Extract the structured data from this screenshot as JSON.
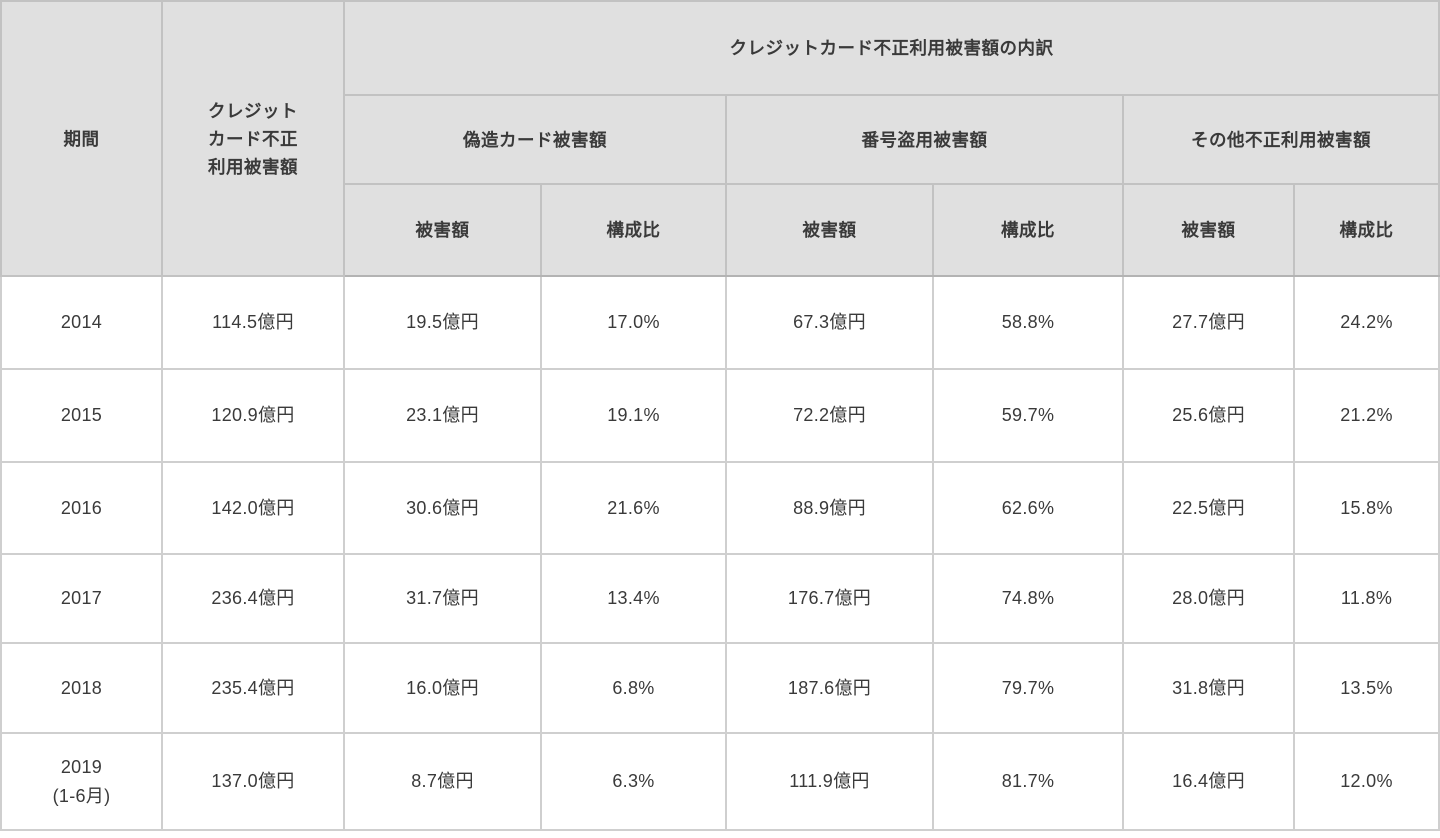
{
  "table": {
    "header": {
      "period": "期間",
      "total": "クレジット\nカード不正\n利用被害額",
      "breakdown_title": "クレジットカード不正利用被害額の内訳",
      "groups": [
        {
          "label": "偽造カード被害額"
        },
        {
          "label": "番号盗用被害額"
        },
        {
          "label": "その他不正利用被害額"
        }
      ],
      "amount_label": "被害額",
      "ratio_label": "構成比"
    },
    "rows": [
      {
        "cells": [
          "2014",
          "114.5億円",
          "19.5億円",
          "17.0%",
          "67.3億円",
          "58.8%",
          "27.7億円",
          "24.2%"
        ]
      },
      {
        "cells": [
          "2015",
          "120.9億円",
          "23.1億円",
          "19.1%",
          "72.2億円",
          "59.7%",
          "25.6億円",
          "21.2%"
        ]
      },
      {
        "cells": [
          "2016",
          "142.0億円",
          "30.6億円",
          "21.6%",
          "88.9億円",
          "62.6%",
          "22.5億円",
          "15.8%"
        ]
      },
      {
        "cells": [
          "2017",
          "236.4億円",
          "31.7億円",
          "13.4%",
          "176.7億円",
          "74.8%",
          "28.0億円",
          "11.8%"
        ]
      },
      {
        "cells": [
          "2018",
          "235.4億円",
          "16.0億円",
          "6.8%",
          "187.6億円",
          "79.7%",
          "31.8億円",
          "13.5%"
        ]
      },
      {
        "cells": [
          "2019\n(1-6月)",
          "137.0億円",
          "8.7億円",
          "6.3%",
          "111.9億円",
          "81.7%",
          "16.4億円",
          "12.0%"
        ]
      }
    ]
  },
  "colors": {
    "header_bg": "#e0e0e0",
    "body_bg": "#ffffff",
    "border": "#cfcfcf",
    "header_border": "#c2c2c2",
    "text": "#3a3a3a"
  },
  "chart_data": {
    "type": "table",
    "title": "クレジットカード不正利用被害額の内訳",
    "categories": [
      "2014",
      "2015",
      "2016",
      "2017",
      "2018",
      "2019 (1-6月)"
    ],
    "unit_amount": "億円",
    "unit_ratio": "%",
    "series": [
      {
        "name": "クレジットカード不正利用被害額 (億円)",
        "values": [
          114.5,
          120.9,
          142.0,
          236.4,
          235.4,
          137.0
        ]
      },
      {
        "name": "偽造カード被害額 被害額 (億円)",
        "values": [
          19.5,
          23.1,
          30.6,
          31.7,
          16.0,
          8.7
        ]
      },
      {
        "name": "偽造カード被害額 構成比 (%)",
        "values": [
          17.0,
          19.1,
          21.6,
          13.4,
          6.8,
          6.3
        ]
      },
      {
        "name": "番号盗用被害額 被害額 (億円)",
        "values": [
          67.3,
          72.2,
          88.9,
          176.7,
          187.6,
          111.9
        ]
      },
      {
        "name": "番号盗用被害額 構成比 (%)",
        "values": [
          58.8,
          59.7,
          62.6,
          74.8,
          79.7,
          81.7
        ]
      },
      {
        "name": "その他不正利用被害額 被害額 (億円)",
        "values": [
          27.7,
          25.6,
          22.5,
          28.0,
          31.8,
          16.4
        ]
      },
      {
        "name": "その他不正利用被害額 構成比 (%)",
        "values": [
          24.2,
          21.2,
          15.8,
          11.8,
          13.5,
          12.0
        ]
      }
    ],
    "layout": {
      "grid": true,
      "legend": "none"
    }
  }
}
